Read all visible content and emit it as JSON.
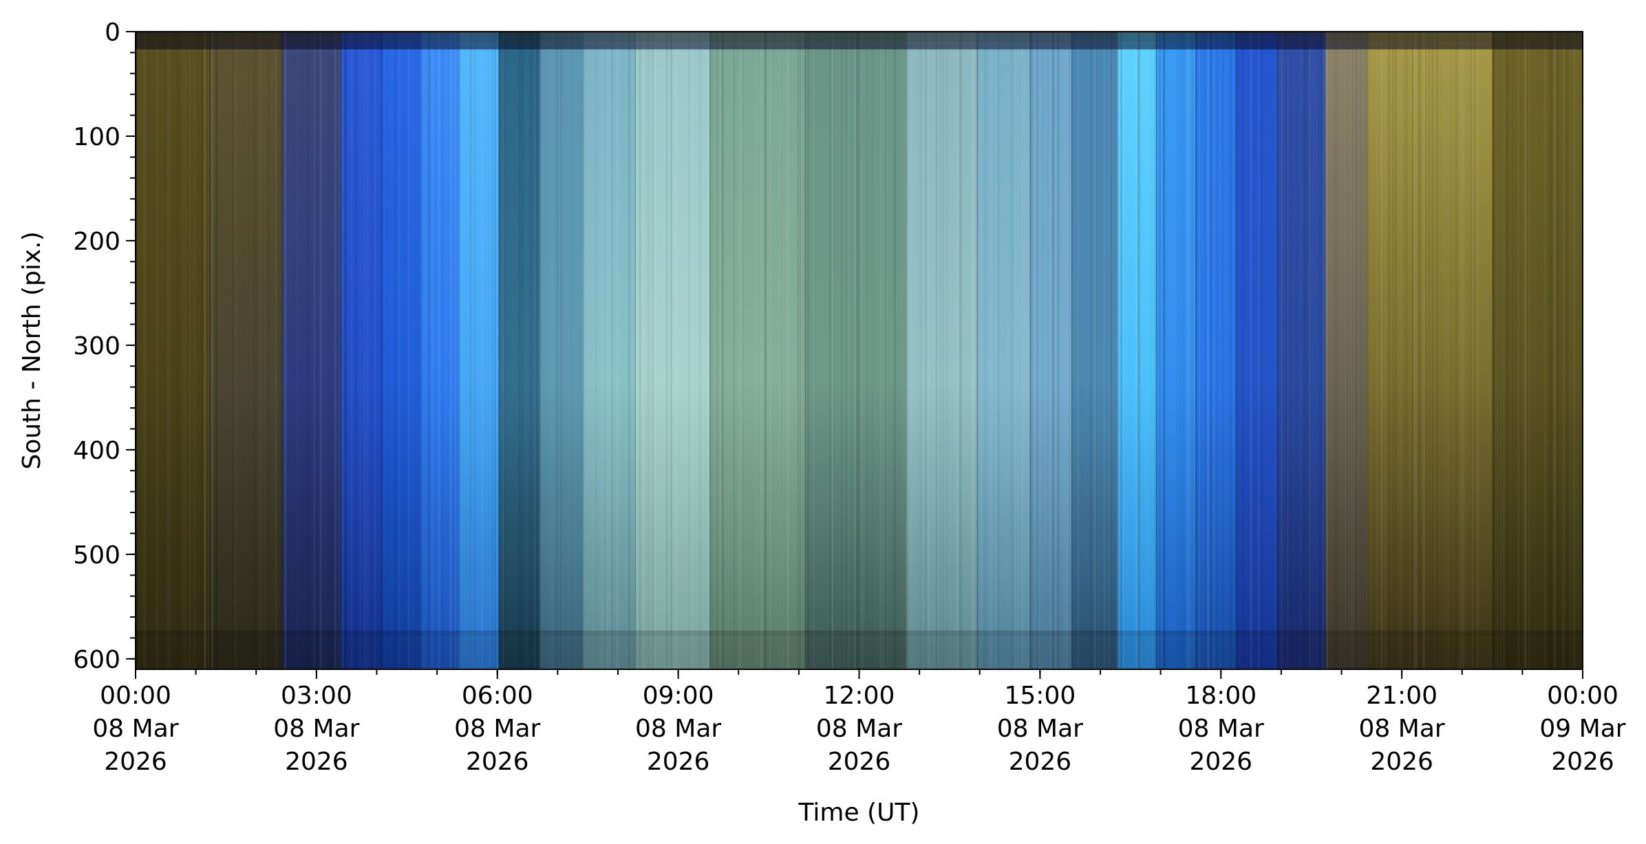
{
  "chart_data": {
    "type": "heatmap",
    "title": "",
    "xlabel": "Time (UT)",
    "ylabel": "South - North (pix.)",
    "x_range_hours": [
      0,
      24
    ],
    "ylim": [
      610,
      0
    ],
    "x_ticks": [
      {
        "hour": 0,
        "lines": [
          "00:00",
          "08 Mar",
          "2026"
        ]
      },
      {
        "hour": 3,
        "lines": [
          "03:00",
          "08 Mar",
          "2026"
        ]
      },
      {
        "hour": 6,
        "lines": [
          "06:00",
          "08 Mar",
          "2026"
        ]
      },
      {
        "hour": 9,
        "lines": [
          "09:00",
          "08 Mar",
          "2026"
        ]
      },
      {
        "hour": 12,
        "lines": [
          "12:00",
          "08 Mar",
          "2026"
        ]
      },
      {
        "hour": 15,
        "lines": [
          "15:00",
          "08 Mar",
          "2026"
        ]
      },
      {
        "hour": 18,
        "lines": [
          "18:00",
          "08 Mar",
          "2026"
        ]
      },
      {
        "hour": 21,
        "lines": [
          "21:00",
          "08 Mar",
          "2026"
        ]
      },
      {
        "hour": 24,
        "lines": [
          "00:00",
          "09 Mar",
          "2026"
        ]
      }
    ],
    "y_ticks": [
      0,
      100,
      200,
      300,
      400,
      500,
      600
    ],
    "y_minor_step": 20,
    "x_minor_step_hours": 1,
    "bands": [
      {
        "start": 0.0,
        "end": 1.22,
        "top": "#5a5020",
        "mid": "#4a4218",
        "bot": "#2e2a12"
      },
      {
        "start": 1.22,
        "end": 2.42,
        "top": "#5e5530",
        "mid": "#4a4530",
        "bot": "#2a2818"
      },
      {
        "start": 2.42,
        "end": 3.4,
        "top": "#3c4a78",
        "mid": "#2c3c7e",
        "bot": "#1a2450"
      },
      {
        "start": 3.4,
        "end": 4.08,
        "top": "#2a5ad8",
        "mid": "#2450c8",
        "bot": "#14308a"
      },
      {
        "start": 4.08,
        "end": 4.72,
        "top": "#2a68e8",
        "mid": "#1f5ed8",
        "bot": "#123c9a"
      },
      {
        "start": 4.72,
        "end": 5.36,
        "top": "#3d8ef8",
        "mid": "#2f7cf0",
        "bot": "#1a52b8"
      },
      {
        "start": 5.36,
        "end": 6.02,
        "top": "#54b8fb",
        "mid": "#46a8f6",
        "bot": "#2a74cc"
      },
      {
        "start": 6.02,
        "end": 6.7,
        "top": "#2c6688",
        "mid": "#346f8e",
        "bot": "#183a4e"
      },
      {
        "start": 6.7,
        "end": 7.42,
        "top": "#5a96b2",
        "mid": "#5c98b0",
        "bot": "#3a6478"
      },
      {
        "start": 7.42,
        "end": 8.28,
        "top": "#7cb4c6",
        "mid": "#88c0c8",
        "bot": "#5c8890"
      },
      {
        "start": 8.28,
        "end": 9.52,
        "top": "#9ac8ca",
        "mid": "#a8d2cc",
        "bot": "#7aa49e"
      },
      {
        "start": 9.52,
        "end": 11.1,
        "top": "#7aa896",
        "mid": "#84ae98",
        "bot": "#5a7c6a"
      },
      {
        "start": 11.1,
        "end": 12.78,
        "top": "#6a9688",
        "mid": "#6c9888",
        "bot": "#3e5a56"
      },
      {
        "start": 12.78,
        "end": 13.95,
        "top": "#8ab8be",
        "mid": "#94c0c4",
        "bot": "#5e8a90"
      },
      {
        "start": 13.95,
        "end": 14.83,
        "top": "#78b0c8",
        "mid": "#82b8cc",
        "bot": "#50829a"
      },
      {
        "start": 14.83,
        "end": 15.52,
        "top": "#6ea6cc",
        "mid": "#74aacc",
        "bot": "#4a7898"
      },
      {
        "start": 15.52,
        "end": 16.28,
        "top": "#4c88b4",
        "mid": "#4c88b0",
        "bot": "#2a5070"
      },
      {
        "start": 16.28,
        "end": 16.92,
        "top": "#60d2ff",
        "mid": "#4cc0fa",
        "bot": "#2a88d8"
      },
      {
        "start": 16.92,
        "end": 17.58,
        "top": "#3a9cf6",
        "mid": "#3490f0",
        "bot": "#1c60c0"
      },
      {
        "start": 17.58,
        "end": 18.24,
        "top": "#2c7ae8",
        "mid": "#2a76e6",
        "bot": "#184ea8"
      },
      {
        "start": 18.24,
        "end": 18.92,
        "top": "#2556d0",
        "mid": "#2454c8",
        "bot": "#163494"
      },
      {
        "start": 18.92,
        "end": 19.72,
        "top": "#3050a8",
        "mid": "#2a4aa0",
        "bot": "#18286a"
      },
      {
        "start": 19.72,
        "end": 20.42,
        "top": "#8c8468",
        "mid": "#6a6452",
        "bot": "#3a3428"
      },
      {
        "start": 20.42,
        "end": 22.5,
        "top": "#a89a48",
        "mid": "#7a6e30",
        "bot": "#3a3216"
      },
      {
        "start": 22.5,
        "end": 24.0,
        "top": "#6e6428",
        "mid": "#5a5220",
        "bot": "#2e2a10"
      }
    ]
  }
}
